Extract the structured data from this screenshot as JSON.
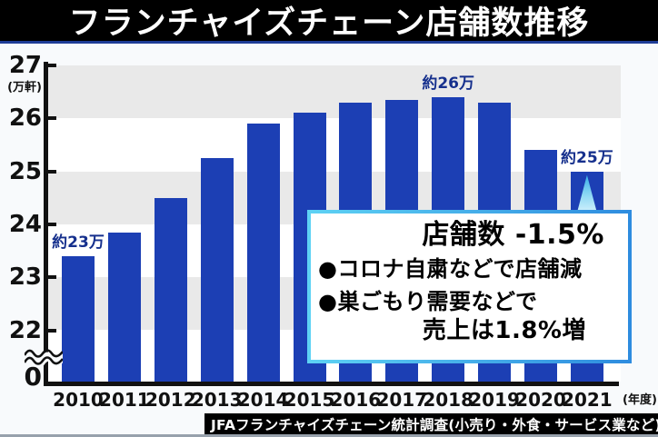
{
  "title_bar": {
    "title": "フランチャイズチェーン店舗数推移"
  },
  "chart_data": {
    "type": "bar",
    "title": "フランチャイズチェーン店舗数推移",
    "categories": [
      "2010",
      "2011",
      "2012",
      "2013",
      "2014",
      "2015",
      "2016",
      "2017",
      "2018",
      "2019",
      "2020",
      "2021"
    ],
    "values": [
      23.4,
      23.85,
      24.5,
      25.25,
      25.9,
      26.1,
      26.3,
      26.35,
      26.4,
      26.3,
      25.4,
      25.0
    ],
    "ylabel_unit": "(万軒)",
    "xlabel_unit": "(年度)",
    "y_ticks": [
      "27",
      "26",
      "25",
      "24",
      "23",
      "22"
    ],
    "y_tick_values": [
      27,
      26,
      25,
      24,
      23,
      22
    ],
    "y_zero_label": "0",
    "axis_break": true,
    "ylim_display": [
      22,
      27
    ],
    "grid": "alternating-bands",
    "legend": "none",
    "bar_color": "#1c3fb4",
    "band_color": "#e9e9e9",
    "point_label_color": "#16308d",
    "point_labels": [
      {
        "category": "2010",
        "text": "約23万"
      },
      {
        "category": "2018",
        "text": "約26万"
      },
      {
        "category": "2021",
        "text": "約25万"
      }
    ],
    "highlight": {
      "category": "2021",
      "marker": "light-triangle"
    }
  },
  "callout": {
    "heading": "店舗数 -1.5%",
    "bullets": [
      "●コロナ自粛などで店舗減",
      "●巣ごもり需要などで"
    ],
    "sub_line": "売上は1.8%増"
  },
  "source_bar": {
    "text": "JFAフランチャイズチェーン統計調査(小売り・外食・サービス業など)"
  },
  "colors": {
    "title_bar_bg": "#000000",
    "title_underline": "#1e3c96",
    "bar_blue": "#1c3fb4",
    "band_gray": "#e9e9e9",
    "annotation_navy": "#16308d",
    "callout_border_left": "#5ed2f4",
    "callout_border_right": "#2e8cdf",
    "source_bar_bg": "#000000"
  }
}
